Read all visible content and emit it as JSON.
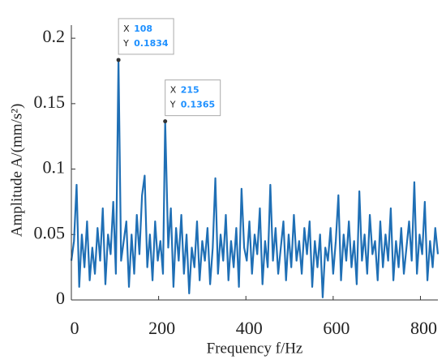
{
  "chart_data": {
    "type": "line",
    "xlabel": "Frequency f/Hz",
    "ylabel": "Amplitude A/(mm/s²)",
    "xlim": [
      0,
      840
    ],
    "xticks": [
      0,
      200,
      400,
      600,
      800
    ],
    "ylim": [
      0,
      0.21
    ],
    "yticks": [
      0,
      0.05,
      0.1,
      0.15,
      0.2
    ],
    "annotations": [
      {
        "x_name": "X",
        "x": 108,
        "y_name": "Y",
        "y": 0.1834
      },
      {
        "x_name": "X",
        "x": 215,
        "y_name": "Y",
        "y": 0.1365
      }
    ],
    "series": [
      {
        "color": "#1f6fb5",
        "x": [
          0,
          6,
          12,
          18,
          24,
          30,
          36,
          42,
          48,
          54,
          60,
          66,
          72,
          78,
          84,
          90,
          96,
          102,
          108,
          114,
          120,
          126,
          132,
          138,
          144,
          150,
          156,
          162,
          168,
          174,
          180,
          186,
          192,
          198,
          204,
          210,
          215,
          222,
          228,
          234,
          240,
          246,
          252,
          258,
          264,
          270,
          276,
          282,
          288,
          294,
          300,
          306,
          312,
          318,
          324,
          330,
          336,
          342,
          348,
          354,
          360,
          366,
          372,
          378,
          384,
          390,
          396,
          402,
          408,
          414,
          420,
          426,
          432,
          438,
          444,
          450,
          456,
          462,
          468,
          474,
          480,
          486,
          492,
          498,
          504,
          510,
          516,
          522,
          528,
          534,
          540,
          546,
          552,
          558,
          564,
          570,
          576,
          582,
          588,
          594,
          600,
          606,
          612,
          618,
          624,
          630,
          636,
          642,
          648,
          654,
          660,
          666,
          672,
          678,
          684,
          690,
          696,
          702,
          708,
          714,
          720,
          726,
          732,
          738,
          744,
          750,
          756,
          762,
          768,
          774,
          780,
          786,
          792,
          798,
          804,
          810,
          816,
          822,
          828,
          834,
          840
        ],
        "values": [
          0.03,
          0.045,
          0.088,
          0.01,
          0.05,
          0.025,
          0.06,
          0.015,
          0.04,
          0.02,
          0.055,
          0.03,
          0.07,
          0.012,
          0.05,
          0.035,
          0.075,
          0.02,
          0.1834,
          0.03,
          0.045,
          0.06,
          0.01,
          0.05,
          0.02,
          0.065,
          0.035,
          0.08,
          0.095,
          0.025,
          0.05,
          0.015,
          0.06,
          0.03,
          0.045,
          0.02,
          0.1365,
          0.04,
          0.07,
          0.01,
          0.055,
          0.03,
          0.065,
          0.02,
          0.05,
          0.005,
          0.04,
          0.025,
          0.06,
          0.015,
          0.045,
          0.03,
          0.055,
          0.012,
          0.04,
          0.093,
          0.02,
          0.05,
          0.03,
          0.065,
          0.015,
          0.045,
          0.025,
          0.055,
          0.01,
          0.085,
          0.04,
          0.03,
          0.06,
          0.02,
          0.05,
          0.035,
          0.07,
          0.012,
          0.045,
          0.025,
          0.088,
          0.03,
          0.055,
          0.02,
          0.04,
          0.06,
          0.015,
          0.05,
          0.025,
          0.065,
          0.03,
          0.045,
          0.02,
          0.055,
          0.035,
          0.06,
          0.01,
          0.045,
          0.025,
          0.05,
          0.002,
          0.04,
          0.03,
          0.055,
          0.02,
          0.045,
          0.08,
          0.015,
          0.05,
          0.03,
          0.06,
          0.025,
          0.045,
          0.012,
          0.083,
          0.03,
          0.05,
          0.02,
          0.065,
          0.035,
          0.045,
          0.015,
          0.06,
          0.025,
          0.05,
          0.03,
          0.07,
          0.015,
          0.045,
          0.025,
          0.055,
          0.02,
          0.04,
          0.06,
          0.03,
          0.09,
          0.02,
          0.05,
          0.035,
          0.075,
          0.015,
          0.045,
          0.025,
          0.055,
          0.035
        ]
      }
    ]
  }
}
